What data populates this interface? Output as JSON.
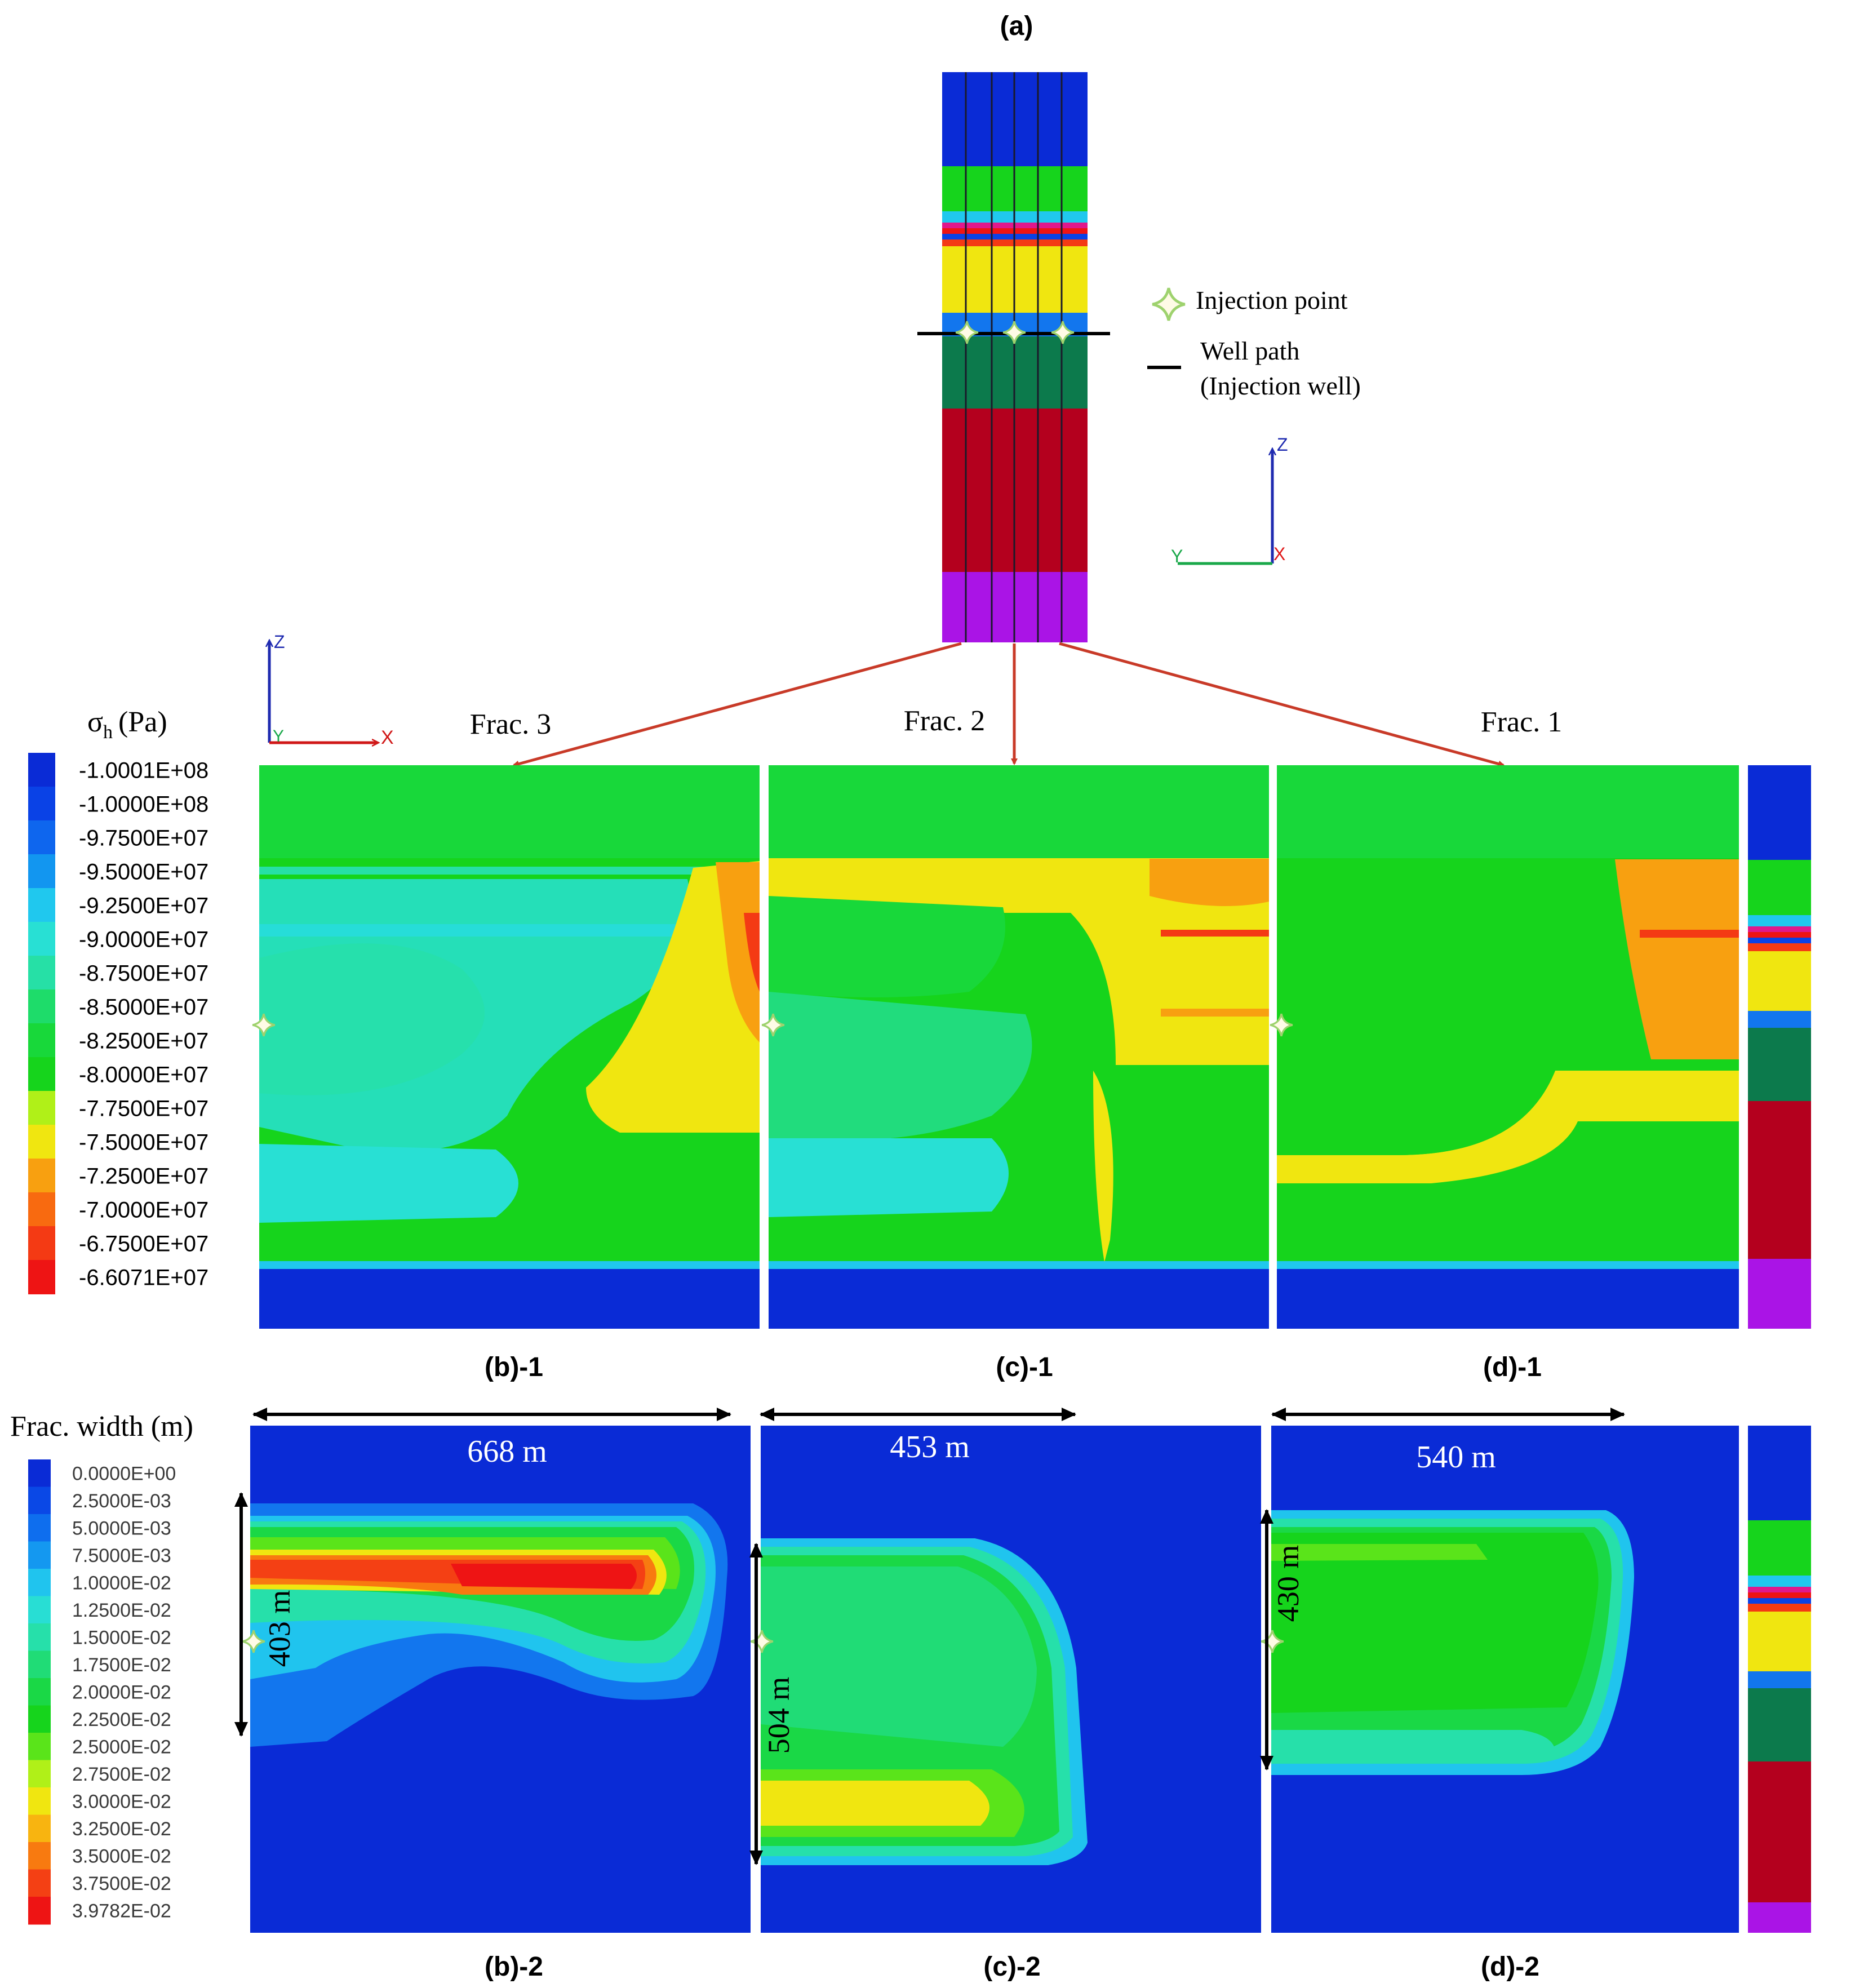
{
  "panel_labels": {
    "a": "(a)",
    "b1": "(b)-1",
    "c1": "(c)-1",
    "d1": "(d)-1",
    "b2": "(b)-2",
    "c2": "(c)-2",
    "d2": "(d)-2"
  },
  "fracture_titles": [
    "Frac. 3",
    "Frac. 2",
    "Frac. 1"
  ],
  "legend_symbols": {
    "injection_point": "Injection point",
    "well_path_line1": "Well path",
    "well_path_line2": "(Injection well)"
  },
  "axes_labels": {
    "z": "Z",
    "y": "Y",
    "x": "X"
  },
  "stress_scale": {
    "title": "σ",
    "title_sub": "h",
    "title_unit": "(Pa)",
    "entries": [
      {
        "label": "-1.0001E+08",
        "color": "#0a2bd6"
      },
      {
        "label": "-1.0000E+08",
        "color": "#0a42e6"
      },
      {
        "label": "-9.7500E+07",
        "color": "#0e66ee"
      },
      {
        "label": "-9.5000E+07",
        "color": "#1296f0"
      },
      {
        "label": "-9.2500E+07",
        "color": "#20c8ee"
      },
      {
        "label": "-9.0000E+07",
        "color": "#28e0d4"
      },
      {
        "label": "-8.7500E+07",
        "color": "#26e0a6"
      },
      {
        "label": "-8.5000E+07",
        "color": "#1edc6a"
      },
      {
        "label": "-8.2500E+07",
        "color": "#18d83a"
      },
      {
        "label": "-8.0000E+07",
        "color": "#16d41c"
      },
      {
        "label": "-7.7500E+07",
        "color": "#b0f018"
      },
      {
        "label": "-7.5000E+07",
        "color": "#f0e610"
      },
      {
        "label": "-7.2500E+07",
        "color": "#f8a010"
      },
      {
        "label": "-7.0000E+07",
        "color": "#f86a10"
      },
      {
        "label": "-6.7500E+07",
        "color": "#f43a14"
      },
      {
        "label": "-6.6071E+07",
        "color": "#ee1414"
      }
    ]
  },
  "width_scale": {
    "title": "Frac. width (m)",
    "entries": [
      {
        "label": "0.0000E+00",
        "color": "#0a2bd6"
      },
      {
        "label": "2.5000E-03",
        "color": "#0a48e6"
      },
      {
        "label": "5.0000E-03",
        "color": "#0e6eee"
      },
      {
        "label": "7.5000E-03",
        "color": "#1498f0"
      },
      {
        "label": "1.0000E-02",
        "color": "#20c4ee"
      },
      {
        "label": "1.2500E-02",
        "color": "#28ded4"
      },
      {
        "label": "1.5000E-02",
        "color": "#26e0aa"
      },
      {
        "label": "1.7500E-02",
        "color": "#20dc76"
      },
      {
        "label": "2.0000E-02",
        "color": "#1ad846"
      },
      {
        "label": "2.2500E-02",
        "color": "#16d41c"
      },
      {
        "label": "2.5000E-02",
        "color": "#5ae41a"
      },
      {
        "label": "2.7500E-02",
        "color": "#b0f018"
      },
      {
        "label": "3.0000E-02",
        "color": "#f0e610"
      },
      {
        "label": "3.2500E-02",
        "color": "#f8b410"
      },
      {
        "label": "3.5000E-02",
        "color": "#f87a10"
      },
      {
        "label": "3.7500E-02",
        "color": "#f44014"
      },
      {
        "label": "3.9782E-02",
        "color": "#ee1414"
      }
    ]
  },
  "dimensions": {
    "b_width": "668 m",
    "c_width": "453 m",
    "d_width": "540 m",
    "b_height": "403 m",
    "c_height": "504 m",
    "d_height": "430 m"
  },
  "layer_colors": {
    "overburden_blue": "#0a2bd6",
    "upper_green": "#16d41c",
    "thin_cyan": "#20c8ee",
    "thin_magenta": "#e0188c",
    "thin_red": "#ee1414",
    "thin_blue": "#0a42e6",
    "yellow": "#f0e610",
    "mid_blue": "#1276ee",
    "dark_green": "#0c7a4c",
    "dark_red": "#b4001e",
    "purple": "#aa14e6"
  },
  "arrow_color": "#c83a28",
  "well_color": "#000000",
  "injection_marker_color": "#9ed26e"
}
